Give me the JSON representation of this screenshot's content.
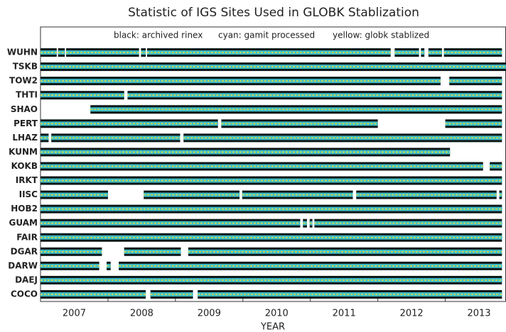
{
  "chart_data": {
    "type": "timeline",
    "title": "Statistic of IGS Sites Used in GLOBK Stablization",
    "notes": [
      "black: archived rinex",
      "cyan: gamit processed",
      "yellow: globk stablized"
    ],
    "x_label": "YEAR",
    "xlim": [
      2007,
      2013.9
    ],
    "xticks": [
      2008,
      2009,
      2010,
      2011,
      2012,
      2013
    ],
    "year_labels": [
      "2007",
      "2008",
      "2009",
      "2010",
      "2011",
      "2012",
      "2013"
    ],
    "colors": {
      "archived": "#0b1616",
      "processed": "#3fbcc4",
      "stablized": "#d9e24a"
    },
    "series": [
      {
        "name": "WUHN",
        "segments": [
          [
            2007.0,
            2007.24
          ],
          [
            2007.26,
            2007.36
          ],
          [
            2007.38,
            2008.46
          ],
          [
            2008.49,
            2008.56
          ],
          [
            2008.58,
            2012.19
          ],
          [
            2012.25,
            2012.61
          ],
          [
            2012.64,
            2012.69
          ],
          [
            2012.75,
            2012.95
          ],
          [
            2012.98,
            2013.84
          ]
        ]
      },
      {
        "name": "TSKB",
        "segments": [
          [
            2007.0,
            2013.9
          ]
        ]
      },
      {
        "name": "TOW2",
        "segments": [
          [
            2007.0,
            2012.93
          ],
          [
            2013.06,
            2013.84
          ]
        ]
      },
      {
        "name": "THTI",
        "segments": [
          [
            2007.0,
            2008.24
          ],
          [
            2008.29,
            2013.84
          ]
        ]
      },
      {
        "name": "SHAO",
        "segments": [
          [
            2007.74,
            2013.84
          ]
        ]
      },
      {
        "name": "PERT",
        "segments": [
          [
            2007.0,
            2009.63
          ],
          [
            2009.68,
            2012.0
          ],
          [
            2013.0,
            2013.84
          ]
        ]
      },
      {
        "name": "LHAZ",
        "segments": [
          [
            2007.0,
            2007.12
          ],
          [
            2007.16,
            2009.07
          ],
          [
            2009.12,
            2013.84
          ]
        ]
      },
      {
        "name": "KUNM",
        "segments": [
          [
            2007.0,
            2013.07
          ]
        ]
      },
      {
        "name": "KOKB",
        "segments": [
          [
            2007.0,
            2013.56
          ],
          [
            2013.66,
            2013.84
          ]
        ]
      },
      {
        "name": "IRKT",
        "segments": [
          [
            2007.0,
            2013.84
          ]
        ]
      },
      {
        "name": "IISC",
        "segments": [
          [
            2007.0,
            2008.0
          ],
          [
            2008.53,
            2009.95
          ],
          [
            2009.99,
            2011.63
          ],
          [
            2011.68,
            2013.76
          ],
          [
            2013.8,
            2013.84
          ]
        ]
      },
      {
        "name": "HOB2",
        "segments": [
          [
            2007.0,
            2013.84
          ]
        ]
      },
      {
        "name": "GUAM",
        "segments": [
          [
            2007.0,
            2010.85
          ],
          [
            2010.89,
            2010.95
          ],
          [
            2010.99,
            2011.03
          ],
          [
            2011.06,
            2013.84
          ]
        ]
      },
      {
        "name": "FAIR",
        "segments": [
          [
            2007.0,
            2013.84
          ]
        ]
      },
      {
        "name": "DGAR",
        "segments": [
          [
            2007.0,
            2007.91
          ],
          [
            2008.24,
            2009.08
          ],
          [
            2009.19,
            2013.84
          ]
        ]
      },
      {
        "name": "DARW",
        "segments": [
          [
            2007.0,
            2007.87
          ],
          [
            2007.98,
            2008.04
          ],
          [
            2008.16,
            2013.84
          ]
        ]
      },
      {
        "name": "DAEJ",
        "segments": [
          [
            2007.0,
            2013.84
          ]
        ]
      },
      {
        "name": "COCO",
        "segments": [
          [
            2007.0,
            2008.56
          ],
          [
            2008.63,
            2009.26
          ],
          [
            2009.33,
            2013.84
          ]
        ]
      }
    ]
  }
}
